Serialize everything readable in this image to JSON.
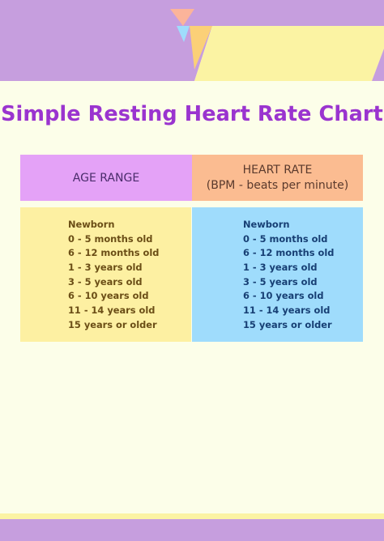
{
  "page": {
    "title": "Simple Resting Heart Rate Chart",
    "colors": {
      "background": "#fcfee9",
      "title": "#9a34cf",
      "age_header": "#e4a2f7",
      "rate_header": "#fbbc91",
      "age_body": "#fdf0a2",
      "rate_body": "#9fdcfc",
      "banner_purple": "#c69ede",
      "banner_yellow": "#fbf3a3"
    }
  },
  "table": {
    "age_header": "AGE RANGE",
    "rate_header_line1": "HEART RATE",
    "rate_header_line2": "(BPM - beats per minute)",
    "age_rows": [
      "Newborn",
      "0 - 5 months old",
      "6 - 12 months old",
      "1 - 3 years old",
      "3 - 5 years old",
      "6 - 10 years old",
      "11 - 14 years old",
      "15 years or older"
    ],
    "rate_rows": [
      "Newborn",
      "0 - 5 months old",
      "6 - 12 months old",
      "1 - 3 years old",
      "3 - 5 years old",
      "6 - 10 years old",
      "11 - 14 years old",
      "15 years or older"
    ]
  }
}
